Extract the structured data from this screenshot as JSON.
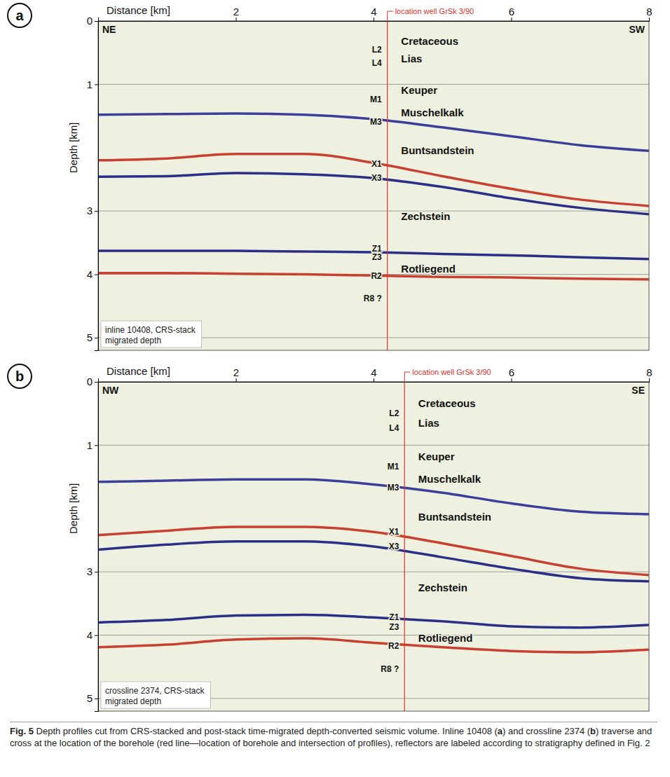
{
  "chart_data": [
    {
      "type": "line",
      "panel_label": "a",
      "xlabel": "Distance [km]",
      "ylabel": "Depth [km]",
      "xlim": [
        0,
        8
      ],
      "xticks": [
        2,
        4,
        6,
        8
      ],
      "ylim": [
        0,
        5.2
      ],
      "yticks": [
        0,
        1,
        3,
        4,
        5
      ],
      "grid": true,
      "directions": [
        "NE",
        "SW"
      ],
      "well": {
        "x": 4.2,
        "label": "location well GrSk 3/90"
      },
      "inset_text": [
        "inline 10408, CRS-stack",
        "migrated depth"
      ],
      "annotations": [
        {
          "text": "Cretaceous",
          "x": 4.4,
          "y": 0.32
        },
        {
          "text": "L2",
          "x": 4.12,
          "y": 0.45
        },
        {
          "text": "Lias",
          "x": 4.4,
          "y": 0.59
        },
        {
          "text": "L4",
          "x": 4.12,
          "y": 0.66
        },
        {
          "text": "Keuper",
          "x": 4.4,
          "y": 1.09
        },
        {
          "text": "M1",
          "x": 4.12,
          "y": 1.24
        },
        {
          "text": "Muschelkalk",
          "x": 4.4,
          "y": 1.45
        },
        {
          "text": "M3",
          "x": 4.12,
          "y": 1.59
        },
        {
          "text": "Buntsandstein",
          "x": 4.4,
          "y": 2.04
        },
        {
          "text": "X1",
          "x": 4.12,
          "y": 2.26
        },
        {
          "text": "X3",
          "x": 4.12,
          "y": 2.48
        },
        {
          "text": "Zechstein",
          "x": 4.4,
          "y": 3.08
        },
        {
          "text": "Z1",
          "x": 4.12,
          "y": 3.59
        },
        {
          "text": "Z3",
          "x": 4.12,
          "y": 3.73
        },
        {
          "text": "Rotliegend",
          "x": 4.4,
          "y": 3.91
        },
        {
          "text": "R2",
          "x": 4.12,
          "y": 4.02
        },
        {
          "text": "R8 ?",
          "x": 4.12,
          "y": 4.38
        }
      ],
      "x": [
        0,
        1,
        2,
        3,
        4,
        5,
        6,
        7,
        8
      ],
      "series": [
        {
          "color": "#3b3f9a",
          "values": [
            1.48,
            1.47,
            1.46,
            1.48,
            1.55,
            1.68,
            1.82,
            1.96,
            2.05
          ]
        },
        {
          "color": "#c8402f",
          "values": [
            2.2,
            2.17,
            2.1,
            2.1,
            2.24,
            2.45,
            2.65,
            2.82,
            2.92
          ]
        },
        {
          "color": "#2b2f86",
          "values": [
            2.46,
            2.45,
            2.4,
            2.42,
            2.48,
            2.62,
            2.8,
            2.95,
            3.05
          ]
        },
        {
          "color": "#2b2f86",
          "values": [
            3.63,
            3.63,
            3.63,
            3.64,
            3.65,
            3.68,
            3.7,
            3.73,
            3.76
          ]
        },
        {
          "color": "#c8402f",
          "values": [
            3.98,
            3.98,
            3.99,
            4.0,
            4.02,
            4.04,
            4.05,
            4.07,
            4.08
          ]
        }
      ]
    },
    {
      "type": "line",
      "panel_label": "b",
      "xlabel": "Distance [km]",
      "ylabel": "Depth [km]",
      "xlim": [
        0,
        8
      ],
      "xticks": [
        2,
        4,
        6,
        8
      ],
      "ylim": [
        0,
        5.2
      ],
      "yticks": [
        0,
        1,
        3,
        4,
        5
      ],
      "grid": true,
      "directions": [
        "NW",
        "SE"
      ],
      "well": {
        "x": 4.45,
        "label": "location well GrSk 3/90"
      },
      "inset_text": [
        "crossline 2374, CRS-stack",
        "migrated depth"
      ],
      "annotations": [
        {
          "text": "Cretaceous",
          "x": 4.65,
          "y": 0.34
        },
        {
          "text": "L2",
          "x": 4.37,
          "y": 0.5
        },
        {
          "text": "Lias",
          "x": 4.65,
          "y": 0.65
        },
        {
          "text": "L4",
          "x": 4.37,
          "y": 0.73
        },
        {
          "text": "Keuper",
          "x": 4.65,
          "y": 1.18
        },
        {
          "text": "M1",
          "x": 4.37,
          "y": 1.34
        },
        {
          "text": "Muschelkalk",
          "x": 4.65,
          "y": 1.54
        },
        {
          "text": "M3",
          "x": 4.37,
          "y": 1.67
        },
        {
          "text": "Buntsandstein",
          "x": 4.65,
          "y": 2.13
        },
        {
          "text": "X1",
          "x": 4.37,
          "y": 2.37
        },
        {
          "text": "X3",
          "x": 4.37,
          "y": 2.6
        },
        {
          "text": "Zechstein",
          "x": 4.65,
          "y": 3.25
        },
        {
          "text": "Z1",
          "x": 4.37,
          "y": 3.72
        },
        {
          "text": "Z3",
          "x": 4.37,
          "y": 3.87
        },
        {
          "text": "Rotliegend",
          "x": 4.65,
          "y": 4.05
        },
        {
          "text": "R2",
          "x": 4.37,
          "y": 4.17
        },
        {
          "text": "R8 ?",
          "x": 4.37,
          "y": 4.53
        }
      ],
      "x": [
        0,
        1,
        2,
        3,
        4,
        5,
        6,
        7,
        8
      ],
      "series": [
        {
          "color": "#3b3f9a",
          "values": [
            1.58,
            1.56,
            1.54,
            1.54,
            1.62,
            1.75,
            1.92,
            2.05,
            2.09
          ]
        },
        {
          "color": "#c8402f",
          "values": [
            2.42,
            2.35,
            2.29,
            2.29,
            2.37,
            2.55,
            2.75,
            2.95,
            3.05
          ]
        },
        {
          "color": "#2b2f86",
          "values": [
            2.65,
            2.57,
            2.52,
            2.52,
            2.6,
            2.77,
            2.95,
            3.1,
            3.15
          ]
        },
        {
          "color": "#2b2f86",
          "values": [
            3.8,
            3.76,
            3.69,
            3.68,
            3.72,
            3.78,
            3.86,
            3.88,
            3.84
          ]
        },
        {
          "color": "#c8402f",
          "values": [
            4.19,
            4.15,
            4.07,
            4.05,
            4.12,
            4.19,
            4.25,
            4.27,
            4.23
          ]
        }
      ]
    }
  ],
  "caption": {
    "label": "Fig. 5",
    "segments": [
      " Depth profiles cut from CRS-stacked and post-stack time-migrated depth-converted seismic volume. Inline 10408 (",
      "a",
      ") and crossline 2374 (",
      "b",
      ") traverse and cross at the location of the borehole (red line—location of borehole and intersection of profiles), reflectors are labeled according to stratigraphy defined in Fig. 2"
    ]
  }
}
